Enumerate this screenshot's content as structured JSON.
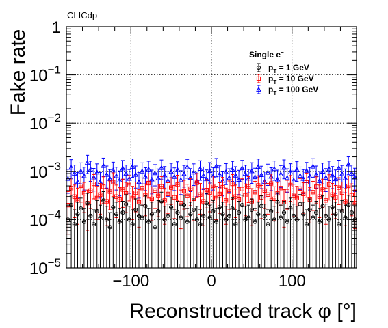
{
  "chart_data": {
    "type": "scatter",
    "experiment_label": "CLICdp",
    "title": "",
    "xlabel": "Reconstructed track φ [°]",
    "ylabel": "Fake rate",
    "xlim": [
      -180,
      180
    ],
    "ylim": [
      1e-05,
      1
    ],
    "y_scale": "log",
    "x_ticks": [
      {
        "value": -100,
        "label": "−100"
      },
      {
        "value": 0,
        "label": "0"
      },
      {
        "value": 100,
        "label": "100"
      }
    ],
    "y_ticks": [
      {
        "value": 1,
        "base": "1",
        "exp": ""
      },
      {
        "value": 0.1,
        "base": "10",
        "exp": "−1"
      },
      {
        "value": 0.01,
        "base": "10",
        "exp": "−2"
      },
      {
        "value": 0.001,
        "base": "10",
        "exp": "−3"
      },
      {
        "value": 0.0001,
        "base": "10",
        "exp": "−4"
      },
      {
        "value": 1e-05,
        "base": "10",
        "exp": "−5"
      }
    ],
    "grid": true,
    "legend": {
      "title_main": "Single e",
      "title_sup": "−",
      "placement": "top-right"
    },
    "bin_count": 90,
    "series": [
      {
        "name": "1 GeV",
        "legend_main": "p",
        "legend_sub": "T",
        "legend_rest": " = 1 GeV",
        "color": "#000000",
        "marker": "circle",
        "values": [
          0.0001,
          0.0002,
          8e-05,
          0.00013,
          0.00017,
          9e-05,
          0.00022,
          0.00012,
          8e-05,
          0.00015,
          0.00011,
          0.00025,
          0.0001,
          7e-05,
          0.00018,
          0.00013,
          9e-05,
          0.00014,
          0.00021,
          0.0001,
          8e-05,
          0.00016,
          0.00012,
          0.00011,
          0.00019,
          9e-05,
          0.00013,
          7e-05,
          0.00015,
          0.00024,
          0.0001,
          0.00012,
          0.00018,
          8e-05,
          0.00014,
          0.00011,
          0.0002,
          9e-05,
          0.00013,
          0.00016,
          0.0001,
          8e-05,
          0.00012,
          0.00022,
          0.00011,
          0.00015,
          9e-05,
          0.00018,
          0.00013,
          0.0001,
          0.00012,
          0.00017,
          8e-05,
          0.00014,
          0.0002,
          0.0001,
          0.00011,
          0.00016,
          9e-05,
          0.00013,
          0.00019,
          0.00012,
          8e-05,
          0.00015,
          0.0001,
          0.00023,
          0.00011,
          0.00014,
          9e-05,
          0.00017,
          0.00012,
          0.0001,
          0.00021,
          0.00013,
          8e-05,
          0.00016,
          0.00011,
          0.00014,
          9e-05,
          0.00019,
          0.00012,
          0.0001,
          0.00018,
          0.00013,
          8e-05,
          0.00015,
          0.00011,
          0.0002,
          0.00014,
          0.0001
        ],
        "errors_up": [
          9e-05,
          0.00012,
          8e-05,
          0.0001,
          0.00011,
          8e-05,
          0.00013,
          9e-05,
          8e-05,
          0.0001,
          9e-05,
          0.00013,
          9e-05,
          7e-05,
          0.00011,
          0.0001,
          8e-05,
          0.0001,
          0.00012,
          9e-05,
          8e-05,
          0.00011,
          9e-05,
          9e-05,
          0.00012,
          8e-05,
          0.0001,
          7e-05,
          0.0001,
          0.00013,
          9e-05,
          9e-05,
          0.00011,
          8e-05,
          0.0001,
          9e-05,
          0.00012,
          8e-05,
          0.0001,
          0.00011,
          9e-05,
          8e-05,
          9e-05,
          0.00013,
          9e-05,
          0.0001,
          8e-05,
          0.00011,
          0.0001,
          9e-05,
          9e-05,
          0.00011,
          8e-05,
          0.0001,
          0.00012,
          9e-05,
          9e-05,
          0.00011,
          8e-05,
          0.0001,
          0.00012,
          9e-05,
          8e-05,
          0.0001,
          9e-05,
          0.00013,
          9e-05,
          0.0001,
          8e-05,
          0.00011,
          9e-05,
          9e-05,
          0.00012,
          0.0001,
          8e-05,
          0.00011,
          9e-05,
          0.0001,
          8e-05,
          0.00012,
          9e-05,
          9e-05,
          0.00011,
          0.0001,
          8e-05,
          0.0001,
          9e-05,
          0.00012,
          0.0001,
          9e-05
        ],
        "errors_down": [
          9.5e-05,
          0.000195,
          7.8e-05,
          0.000125,
          0.000165,
          8.8e-05,
          0.000215,
          0.000115,
          7.8e-05,
          0.000145,
          0.000105,
          0.000245,
          9.5e-05,
          6.8e-05,
          0.000175,
          0.000125,
          8.8e-05,
          0.000135,
          0.000205,
          9.5e-05,
          7.8e-05,
          0.000155,
          0.000115,
          0.000105,
          0.000185,
          8.8e-05,
          0.000125,
          6.8e-05,
          0.000145,
          0.000235,
          9.5e-05,
          0.000115,
          0.000175,
          7.8e-05,
          0.000135,
          0.000105,
          0.000195,
          8.8e-05,
          0.000125,
          0.000155,
          9.5e-05,
          7.8e-05,
          0.000115,
          0.000215,
          0.000105,
          0.000145,
          8.8e-05,
          0.000175,
          0.000125,
          9.5e-05,
          0.000115,
          0.000165,
          7.8e-05,
          0.000135,
          0.000195,
          9.5e-05,
          0.000105,
          0.000155,
          8.8e-05,
          0.000125,
          0.000185,
          0.000115,
          7.8e-05,
          0.000145,
          9.5e-05,
          0.000225,
          0.000105,
          0.000135,
          8.8e-05,
          0.000165,
          0.000115,
          9.5e-05,
          0.000205,
          0.000125,
          7.8e-05,
          0.000155,
          0.000105,
          0.000135,
          8.8e-05,
          0.000185,
          0.000115,
          9.5e-05,
          0.000175,
          0.000125,
          7.8e-05,
          0.000145,
          0.000105,
          0.000195,
          0.000135,
          9.5e-05
        ]
      },
      {
        "name": "10 GeV",
        "legend_main": "p",
        "legend_sub": "T",
        "legend_rest": " = 10 GeV",
        "color": "#ff0000",
        "marker": "square",
        "values": [
          0.0002,
          0.00045,
          0.0003,
          0.00025,
          0.0005,
          0.00035,
          0.00022,
          0.0004,
          0.00055,
          0.00028,
          0.00033,
          0.00048,
          0.00024,
          0.00038,
          0.0006,
          0.0003,
          0.00026,
          0.00042,
          0.00035,
          0.00052,
          0.00028,
          0.00036,
          0.00023,
          0.00045,
          0.00032,
          0.00057,
          0.00027,
          0.0004,
          0.00031,
          0.00049,
          0.00025,
          0.00034,
          0.00046,
          0.00029,
          0.00053,
          0.00022,
          0.00039,
          0.00031,
          0.00044,
          0.00027,
          0.00058,
          0.00033,
          0.00024,
          0.00041,
          0.00036,
          0.0005,
          0.00028,
          0.00034,
          0.00047,
          0.00025,
          0.00038,
          0.00055,
          0.0003,
          0.00026,
          0.00043,
          0.00032,
          0.00049,
          0.00024,
          0.00037,
          0.00051,
          0.00029,
          0.0004,
          0.00033,
          0.00056,
          0.00027,
          0.00035,
          0.00045,
          0.00023,
          0.00039,
          0.00052,
          0.00031,
          0.00028,
          0.00044,
          0.00034,
          0.00059,
          0.00026,
          0.00037,
          0.00048,
          0.0003,
          0.00042,
          0.00025,
          0.00054,
          0.00033,
          0.00029,
          0.00046,
          0.00036,
          0.00024,
          0.0005,
          0.00032,
          0.00022
        ],
        "errors_up": [
          0.00018,
          0.00028,
          0.00022,
          0.0002,
          0.0003,
          0.00024,
          0.00019,
          0.00026,
          0.00031,
          0.00021,
          0.00023,
          0.00029,
          0.0002,
          0.00025,
          0.00033,
          0.00022,
          0.0002,
          0.00027,
          0.00024,
          0.0003,
          0.00021,
          0.00024,
          0.00019,
          0.00028,
          0.00023,
          0.00032,
          0.00021,
          0.00026,
          0.00023,
          0.00029,
          0.0002,
          0.00024,
          0.00028,
          0.00022,
          0.0003,
          0.00019,
          0.00026,
          0.00023,
          0.00027,
          0.00021,
          0.00032,
          0.00023,
          0.0002,
          0.00026,
          0.00024,
          0.0003,
          0.00021,
          0.00024,
          0.00028,
          0.0002,
          0.00025,
          0.00031,
          0.00022,
          0.0002,
          0.00027,
          0.00023,
          0.00029,
          0.0002,
          0.00025,
          0.0003,
          0.00022,
          0.00026,
          0.00023,
          0.00032,
          0.00021,
          0.00024,
          0.00028,
          0.00019,
          0.00026,
          0.0003,
          0.00023,
          0.00021,
          0.00027,
          0.00024,
          0.00033,
          0.0002,
          0.00025,
          0.00029,
          0.00022,
          0.00027,
          0.0002,
          0.00031,
          0.00023,
          0.00022,
          0.00028,
          0.00024,
          0.0002,
          0.0003,
          0.00023,
          0.00019
        ],
        "errors_down": [
          0.00015,
          0.00025,
          0.00019,
          0.00017,
          0.00027,
          0.00021,
          0.00016,
          0.00023,
          0.00028,
          0.00018,
          0.0002,
          0.00026,
          0.000165,
          0.00022,
          0.0003,
          0.00019,
          0.000175,
          0.00024,
          0.00021,
          0.000275,
          0.00018,
          0.000215,
          0.00016,
          0.00025,
          0.0002,
          0.00029,
          0.000175,
          0.00023,
          0.000195,
          0.000265,
          0.00017,
          0.000205,
          0.000255,
          0.000185,
          0.00028,
          0.000155,
          0.000225,
          0.000195,
          0.000245,
          0.000175,
          0.000295,
          0.0002,
          0.000165,
          0.000235,
          0.000215,
          0.00027,
          0.00018,
          0.000205,
          0.00026,
          0.00017,
          0.00022,
          0.000285,
          0.00019,
          0.000175,
          0.00024,
          0.0002,
          0.000265,
          0.000165,
          0.000215,
          0.000275,
          0.000185,
          0.00023,
          0.0002,
          0.00029,
          0.000175,
          0.00021,
          0.00025,
          0.00016,
          0.000225,
          0.00028,
          0.000195,
          0.00018,
          0.000245,
          0.000205,
          0.0003,
          0.000175,
          0.000215,
          0.00026,
          0.00019,
          0.00024,
          0.00017,
          0.000285,
          0.0002,
          0.000185,
          0.000255,
          0.00021,
          0.000165,
          0.00027,
          0.0002,
          0.000155
        ]
      },
      {
        "name": "100 GeV",
        "legend_main": "p",
        "legend_sub": "T",
        "legend_rest": " = 100 GeV",
        "color": "#0000ff",
        "marker": "triangle",
        "values": [
          0.0007,
          0.0012,
          0.0009,
          0.0006,
          0.001,
          0.0008,
          0.0015,
          0.0011,
          0.00075,
          0.00095,
          0.0006,
          0.0013,
          0.00085,
          0.0007,
          0.00105,
          0.0008,
          0.00065,
          0.00115,
          0.0009,
          0.0007,
          0.00125,
          0.00085,
          0.0006,
          0.001,
          0.00078,
          0.0011,
          0.00068,
          0.00092,
          0.00072,
          0.00118,
          0.00083,
          0.00063,
          0.00098,
          0.00077,
          0.00107,
          0.00066,
          0.00088,
          0.00122,
          0.00074,
          0.00095,
          0.00062,
          0.00113,
          0.00081,
          0.00069,
          0.00102,
          0.00079,
          0.00128,
          0.00086,
          0.00064,
          0.00097,
          0.00073,
          0.00109,
          0.00082,
          0.00067,
          0.00116,
          0.00089,
          0.00071,
          0.00101,
          0.00076,
          0.00124,
          0.00084,
          0.00061,
          0.00094,
          0.00078,
          0.00112,
          0.00068,
          0.00087,
          0.00119,
          0.00073,
          0.00096,
          0.00065,
          0.00108,
          0.00081,
          0.0007,
          0.00103,
          0.00079,
          0.00126,
          0.00085,
          0.00063,
          0.00099,
          0.00074,
          0.00111,
          0.00083,
          0.00069,
          0.00117,
          0.00088,
          0.00072,
          0.0014,
          0.0009,
          0.00075
        ],
        "errors_up": [
          0.0004,
          0.00055,
          0.00045,
          0.00035,
          0.0005,
          0.00042,
          0.00065,
          0.00052,
          0.0004,
          0.00048,
          0.00035,
          0.00058,
          0.00044,
          0.00039,
          0.0005,
          0.00042,
          0.00037,
          0.00053,
          0.00045,
          0.00039,
          0.00056,
          0.00044,
          0.00035,
          0.0005,
          0.00041,
          0.00052,
          0.00038,
          0.00046,
          0.0004,
          0.00054,
          0.00043,
          0.00036,
          0.00049,
          0.00041,
          0.00051,
          0.00037,
          0.00045,
          0.00055,
          0.0004,
          0.00048,
          0.00036,
          0.00053,
          0.00042,
          0.00038,
          0.0005,
          0.00041,
          0.00057,
          0.00044,
          0.00037,
          0.00048,
          0.0004,
          0.00052,
          0.00043,
          0.00038,
          0.00053,
          0.00045,
          0.00039,
          0.0005,
          0.0004,
          0.00056,
          0.00044,
          0.00036,
          0.00047,
          0.00041,
          0.00052,
          0.00038,
          0.00045,
          0.00054,
          0.0004,
          0.00048,
          0.00037,
          0.00051,
          0.00042,
          0.00039,
          0.0005,
          0.00041,
          0.00057,
          0.00044,
          0.00036,
          0.00049,
          0.0004,
          0.00052,
          0.00043,
          0.00038,
          0.00053,
          0.00045,
          0.0004,
          0.0006,
          0.00045,
          0.00041
        ],
        "errors_down": [
          0.00035,
          0.0005,
          0.00042,
          0.00032,
          0.00045,
          0.00039,
          0.0006,
          0.00048,
          0.00036,
          0.00044,
          0.00032,
          0.00052,
          0.0004,
          0.00035,
          0.00046,
          0.00039,
          0.00034,
          0.00048,
          0.00042,
          0.00035,
          0.0005,
          0.0004,
          0.00032,
          0.00045,
          0.00038,
          0.00048,
          0.00034,
          0.00042,
          0.00036,
          0.00049,
          0.0004,
          0.00033,
          0.00044,
          0.00037,
          0.00047,
          0.00033,
          0.00041,
          0.0005,
          0.00036,
          0.00044,
          0.00032,
          0.00048,
          0.00039,
          0.00035,
          0.00045,
          0.00038,
          0.00051,
          0.0004,
          0.00033,
          0.00044,
          0.00036,
          0.00047,
          0.00039,
          0.00034,
          0.00048,
          0.00041,
          0.00035,
          0.00045,
          0.00037,
          0.0005,
          0.0004,
          0.00032,
          0.00043,
          0.00038,
          0.00047,
          0.00034,
          0.00041,
          0.00049,
          0.00036,
          0.00044,
          0.00033,
          0.00046,
          0.00039,
          0.00035,
          0.00045,
          0.00038,
          0.00051,
          0.0004,
          0.00033,
          0.00044,
          0.00036,
          0.00047,
          0.00039,
          0.00034,
          0.00048,
          0.00041,
          0.00036,
          0.00055,
          0.00042,
          0.00037
        ]
      }
    ]
  }
}
